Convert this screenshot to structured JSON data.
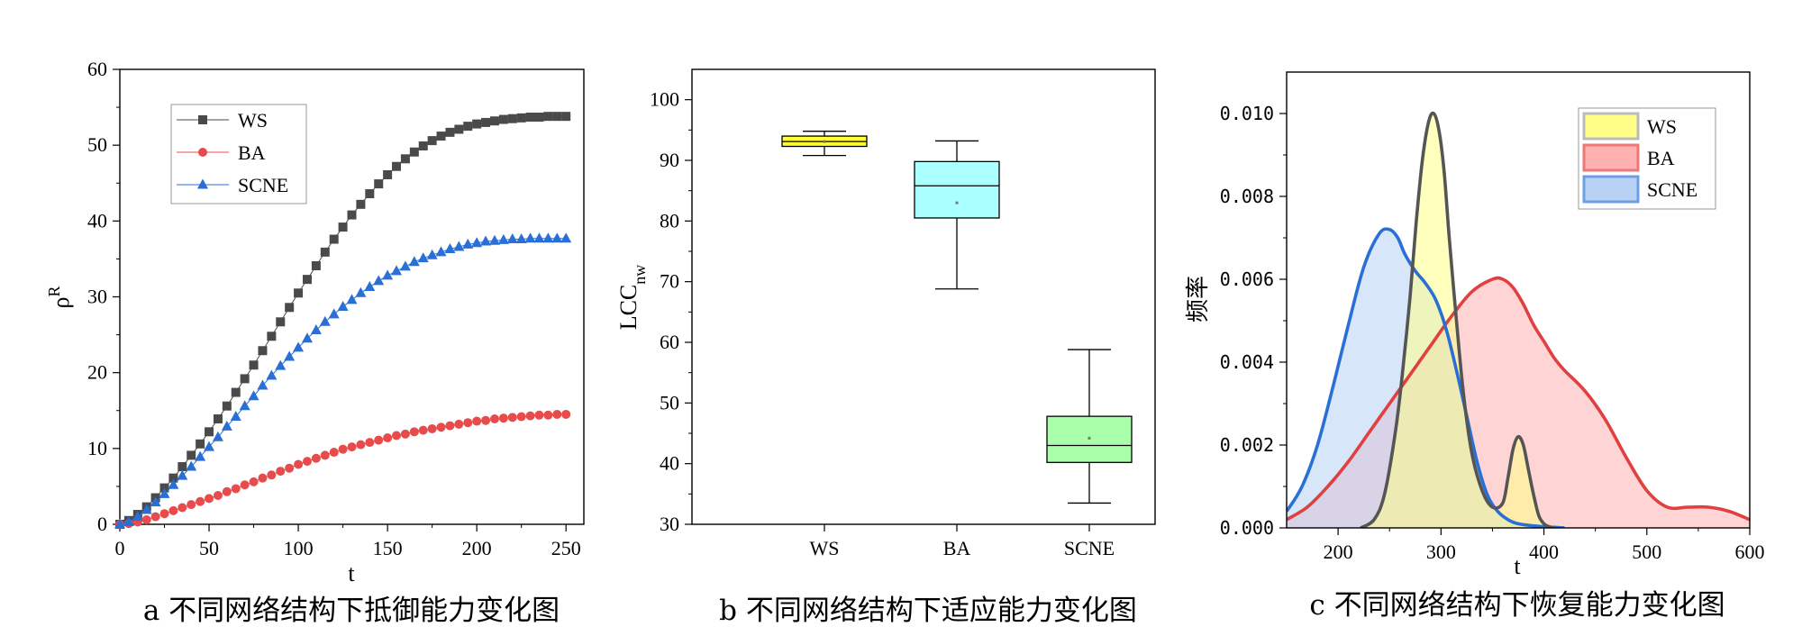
{
  "chart_data": [
    {
      "type": "line",
      "caption": "a  不同网络结构下抵御能力变化图",
      "xlabel": "t",
      "ylabel": "ρ",
      "ylabel_sup": "R",
      "xlim": [
        0,
        260
      ],
      "ylim": [
        0,
        60
      ],
      "xticks": [
        0,
        50,
        100,
        150,
        200,
        250
      ],
      "yticks": [
        0,
        10,
        20,
        30,
        40,
        50,
        60
      ],
      "legend_position": "top-left",
      "series": [
        {
          "name": "WS",
          "marker": "square",
          "color": "#4a4a4a",
          "x": [
            0,
            5,
            10,
            15,
            20,
            25,
            30,
            35,
            40,
            45,
            50,
            55,
            60,
            65,
            70,
            75,
            80,
            85,
            90,
            95,
            100,
            105,
            110,
            115,
            120,
            125,
            130,
            135,
            140,
            145,
            150,
            155,
            160,
            165,
            170,
            175,
            180,
            185,
            190,
            195,
            200,
            205,
            210,
            215,
            220,
            225,
            230,
            235,
            240,
            245,
            250
          ],
          "y": [
            0,
            0.5,
            1.3,
            2.3,
            3.5,
            4.8,
            6.1,
            7.6,
            9.1,
            10.6,
            12.2,
            13.9,
            15.6,
            17.4,
            19.2,
            21.0,
            22.9,
            24.8,
            26.7,
            28.6,
            30.5,
            32.3,
            34.1,
            35.9,
            37.6,
            39.2,
            40.8,
            42.2,
            43.6,
            44.9,
            46.1,
            47.2,
            48.2,
            49.1,
            49.9,
            50.6,
            51.2,
            51.7,
            52.1,
            52.5,
            52.8,
            53.0,
            53.2,
            53.4,
            53.5,
            53.6,
            53.7,
            53.7,
            53.8,
            53.8,
            53.8
          ]
        },
        {
          "name": "BA",
          "marker": "circle",
          "color": "#e84b4b",
          "x": [
            0,
            5,
            10,
            15,
            20,
            25,
            30,
            35,
            40,
            45,
            50,
            55,
            60,
            65,
            70,
            75,
            80,
            85,
            90,
            95,
            100,
            105,
            110,
            115,
            120,
            125,
            130,
            135,
            140,
            145,
            150,
            155,
            160,
            165,
            170,
            175,
            180,
            185,
            190,
            195,
            200,
            205,
            210,
            215,
            220,
            225,
            230,
            235,
            240,
            245,
            250
          ],
          "y": [
            0,
            0.1,
            0.3,
            0.6,
            1.0,
            1.4,
            1.8,
            2.2,
            2.6,
            3.0,
            3.4,
            3.8,
            4.3,
            4.7,
            5.2,
            5.6,
            6.1,
            6.5,
            7.0,
            7.4,
            7.9,
            8.3,
            8.7,
            9.1,
            9.5,
            9.9,
            10.2,
            10.5,
            10.8,
            11.1,
            11.4,
            11.7,
            11.9,
            12.2,
            12.4,
            12.6,
            12.8,
            13.0,
            13.2,
            13.4,
            13.6,
            13.7,
            13.9,
            14.0,
            14.1,
            14.2,
            14.3,
            14.4,
            14.4,
            14.5,
            14.5
          ]
        },
        {
          "name": "SCNE",
          "marker": "triangle",
          "color": "#2a6fd6",
          "x": [
            0,
            5,
            10,
            15,
            20,
            25,
            30,
            35,
            40,
            45,
            50,
            55,
            60,
            65,
            70,
            75,
            80,
            85,
            90,
            95,
            100,
            105,
            110,
            115,
            120,
            125,
            130,
            135,
            140,
            145,
            150,
            155,
            160,
            165,
            170,
            175,
            180,
            185,
            190,
            195,
            200,
            205,
            210,
            215,
            220,
            225,
            230,
            235,
            240,
            245,
            250
          ],
          "y": [
            0,
            0.3,
            1.0,
            1.9,
            2.9,
            4.0,
            5.2,
            6.4,
            7.6,
            8.9,
            10.2,
            11.5,
            12.9,
            14.2,
            15.6,
            16.9,
            18.3,
            19.6,
            20.9,
            22.1,
            23.3,
            24.5,
            25.6,
            26.7,
            27.7,
            28.7,
            29.6,
            30.5,
            31.3,
            32.1,
            32.8,
            33.4,
            34.0,
            34.6,
            35.1,
            35.5,
            35.9,
            36.3,
            36.6,
            36.9,
            37.1,
            37.3,
            37.4,
            37.5,
            37.6,
            37.6,
            37.7,
            37.7,
            37.7,
            37.7,
            37.7
          ]
        }
      ]
    },
    {
      "type": "box",
      "caption": "b  不同网络结构下适应能力变化图",
      "ylabel": "LCC",
      "ylabel_sub": "nw",
      "ylim": [
        30,
        105
      ],
      "yticks": [
        30,
        40,
        50,
        60,
        70,
        80,
        90,
        100
      ],
      "categories": [
        "WS",
        "BA",
        "SCNE"
      ],
      "boxes": [
        {
          "name": "WS",
          "min": 90.8,
          "q1": 92.3,
          "median": 93.1,
          "q3": 94.0,
          "max": 94.8,
          "mean": 93.1,
          "color": "#ffff33"
        },
        {
          "name": "BA",
          "min": 68.8,
          "q1": 80.5,
          "median": 85.8,
          "q3": 89.8,
          "max": 93.2,
          "mean": 83.0,
          "color": "#aaffff"
        },
        {
          "name": "SCNE",
          "min": 33.5,
          "q1": 40.2,
          "median": 43.0,
          "q3": 47.8,
          "max": 58.8,
          "mean": 44.2,
          "color": "#aaffaa"
        }
      ]
    },
    {
      "type": "area",
      "caption": "c  不同网络结构下恢复能力变化图",
      "xlabel": "t",
      "ylabel": "频率",
      "xlim": [
        150,
        600
      ],
      "ylim": [
        0,
        0.011
      ],
      "xticks": [
        200,
        300,
        400,
        500,
        600
      ],
      "yticks": [
        "0.000",
        "0.002",
        "0.004",
        "0.006",
        "0.008",
        "0.010"
      ],
      "legend_position": "top-right",
      "series": [
        {
          "name": "WS",
          "line_color": "#555555",
          "fill_color": "#ffff88",
          "legend_edge": "#bbbbbb",
          "x": [
            222,
            235,
            245,
            255,
            262,
            270,
            276,
            282,
            288,
            293,
            298,
            303,
            308,
            315,
            322,
            330,
            340,
            350,
            360,
            365,
            370,
            375,
            380,
            385,
            390,
            395,
            400,
            405,
            410
          ],
          "y": [
            0,
            0.0002,
            0.0008,
            0.0022,
            0.0036,
            0.0056,
            0.0074,
            0.0089,
            0.0098,
            0.01,
            0.0096,
            0.0086,
            0.007,
            0.005,
            0.0032,
            0.0018,
            0.0009,
            0.0005,
            0.0006,
            0.0012,
            0.0019,
            0.0022,
            0.002,
            0.0014,
            0.0008,
            0.0003,
            0.0001,
            3e-05,
            0
          ]
        },
        {
          "name": "BA",
          "line_color": "#e04040",
          "fill_color": "#ffb0b0",
          "legend_edge": "#ee7777",
          "x": [
            150,
            170,
            190,
            210,
            230,
            250,
            270,
            290,
            310,
            330,
            350,
            360,
            370,
            380,
            390,
            400,
            410,
            420,
            440,
            460,
            480,
            500,
            520,
            540,
            560,
            580,
            600
          ],
          "y": [
            0.0002,
            0.0005,
            0.001,
            0.0016,
            0.0023,
            0.003,
            0.0037,
            0.0044,
            0.0051,
            0.0057,
            0.006,
            0.006,
            0.0058,
            0.0054,
            0.0049,
            0.0045,
            0.0041,
            0.0038,
            0.0033,
            0.0026,
            0.0017,
            0.0009,
            0.0005,
            0.0005,
            0.0005,
            0.0004,
            0.0002
          ]
        },
        {
          "name": "SCNE",
          "line_color": "#2a6fd6",
          "fill_color": "#b8d2f5",
          "legend_edge": "#6e9fe4",
          "x": [
            150,
            165,
            180,
            195,
            210,
            225,
            240,
            250,
            258,
            265,
            275,
            285,
            295,
            305,
            315,
            325,
            335,
            345,
            355,
            365,
            375,
            390,
            405,
            420
          ],
          "y": [
            0.0004,
            0.001,
            0.002,
            0.0034,
            0.0049,
            0.0063,
            0.0071,
            0.0072,
            0.007,
            0.0066,
            0.0062,
            0.0059,
            0.0055,
            0.0048,
            0.0038,
            0.0027,
            0.0016,
            0.0008,
            0.0004,
            0.0002,
            0.0001,
            5e-05,
            2e-05,
            0
          ]
        }
      ]
    }
  ]
}
